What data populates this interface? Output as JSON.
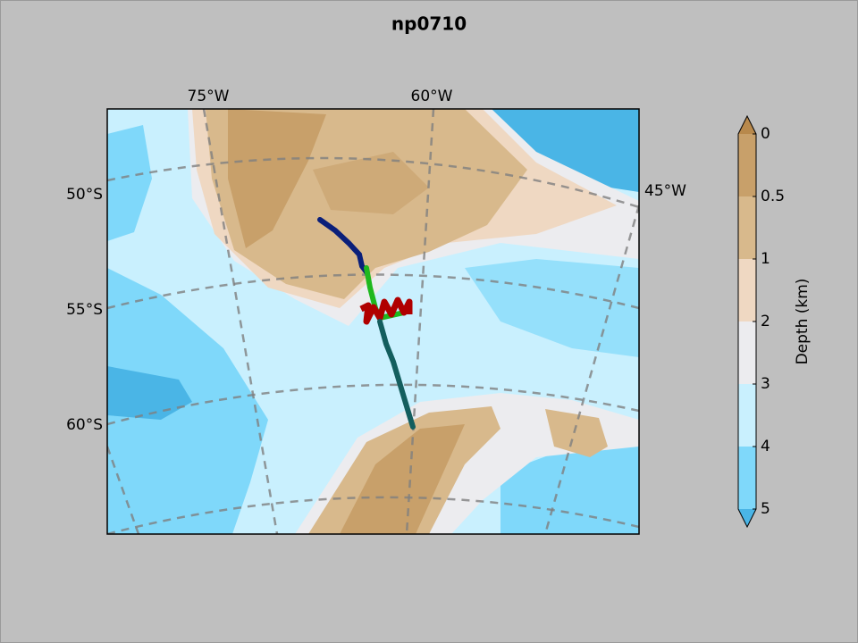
{
  "map": {
    "title": "np0710",
    "lon_labels": [
      "75°W",
      "60°W",
      "45°W"
    ],
    "lat_labels": [
      "50°S",
      "55°S",
      "60°S"
    ],
    "colorbar": {
      "label": "Depth (km)",
      "ticks": [
        0,
        0.5,
        1,
        2,
        3,
        4,
        5
      ],
      "colors": [
        "#c8a06a",
        "#d8b98c",
        "#efd8c2",
        "#ececef",
        "#c9f0fe",
        "#7fd8fa"
      ],
      "extend_colors": [
        "#b8894c",
        "#4ab5e6"
      ]
    }
  }
}
